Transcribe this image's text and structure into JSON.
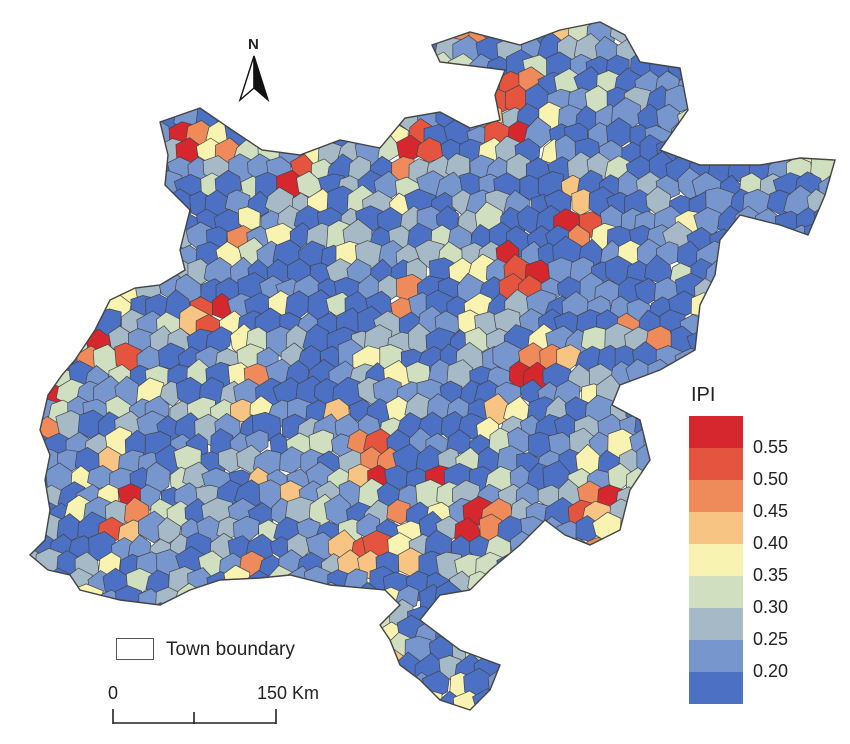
{
  "north_label": "N",
  "legend": {
    "title": "IPI",
    "classes": [
      {
        "label": "0.55",
        "color": "#d6262e"
      },
      {
        "label": "0.50",
        "color": "#e4543e"
      },
      {
        "label": "0.45",
        "color": "#ef8a5b"
      },
      {
        "label": "0.40",
        "color": "#f7c484"
      },
      {
        "label": "0.35",
        "color": "#f8f3b0"
      },
      {
        "label": "0.30",
        "color": "#cfdfc0"
      },
      {
        "label": "0.25",
        "color": "#a5b9c7"
      },
      {
        "label": "0.20",
        "color": "#7896ce"
      },
      {
        "label": "",
        "color": "#4b70c4"
      }
    ]
  },
  "town_boundary_label": "Town boundary",
  "scale_bar": {
    "start_label": "0",
    "end_label": "150 Km"
  },
  "colors": {
    "boundary": "#444444",
    "dominant_low": "#4b70c4",
    "mid_low": "#7896ce"
  }
}
